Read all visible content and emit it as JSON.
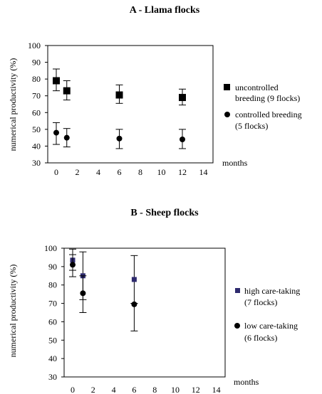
{
  "chart_data": [
    {
      "type": "scatter",
      "title": "A - Llama flocks",
      "xlabel": "months",
      "ylabel": "numerical productivity (%)",
      "xlim": [
        -1,
        14
      ],
      "ylim": [
        30,
        100
      ],
      "x_ticks": [
        "0",
        "2",
        "4",
        "6",
        "8",
        "10",
        "12",
        "14"
      ],
      "y_ticks": [
        "30",
        "40",
        "50",
        "60",
        "70",
        "80",
        "90",
        "100"
      ],
      "grid": false,
      "legend_position": "right",
      "series": [
        {
          "name_lines": [
            "uncontrolled",
            "breeding (9 flocks)"
          ],
          "marker": "square",
          "color": "#000000",
          "points": [
            {
              "x": 0,
              "y": 79,
              "low": 73,
              "high": 86
            },
            {
              "x": 1,
              "y": 73,
              "low": 67.5,
              "high": 79
            },
            {
              "x": 6,
              "y": 70.5,
              "low": 65.5,
              "high": 76.5
            },
            {
              "x": 12,
              "y": 69,
              "low": 64.5,
              "high": 74
            }
          ]
        },
        {
          "name_lines": [
            "controlled breeding",
            "(5 flocks)"
          ],
          "marker": "circle",
          "color": "#000000",
          "points": [
            {
              "x": 0,
              "y": 48,
              "low": 41,
              "high": 54
            },
            {
              "x": 1,
              "y": 45,
              "low": 39.5,
              "high": 50.5
            },
            {
              "x": 6,
              "y": 44.5,
              "low": 38.5,
              "high": 50
            },
            {
              "x": 12,
              "y": 44,
              "low": 38.5,
              "high": 50
            }
          ]
        }
      ]
    },
    {
      "type": "scatter",
      "title": "B - Sheep flocks",
      "xlabel": "months",
      "ylabel": "numerical productivity (%)",
      "xlim": [
        -1,
        14
      ],
      "ylim": [
        30,
        100
      ],
      "x_ticks": [
        "0",
        "2",
        "4",
        "6",
        "8",
        "10",
        "12",
        "14"
      ],
      "y_ticks": [
        "30",
        "40",
        "50",
        "60",
        "70",
        "80",
        "90",
        "100"
      ],
      "grid": false,
      "legend_position": "right",
      "series": [
        {
          "name_lines": [
            "high care-taking",
            "(7 flocks)"
          ],
          "marker": "square",
          "color": "#2e2a6e",
          "points": [
            {
              "x": 0,
              "y": 93.5,
              "low": 88,
              "high": 99.5
            },
            {
              "x": 1,
              "y": 85,
              "low": 72,
              "high": 98
            },
            {
              "x": 6,
              "y": 83,
              "low": 70,
              "high": 96
            }
          ]
        },
        {
          "name_lines": [
            "low care-taking",
            "(6 flocks)"
          ],
          "marker": "circle",
          "color": "#000000",
          "points": [
            {
              "x": 0,
              "y": 91,
              "low": 84.5,
              "high": 96.5
            },
            {
              "x": 1,
              "y": 75.5,
              "low": 65,
              "high": 85
            },
            {
              "x": 6,
              "y": 69.5,
              "low": 55,
              "high": 70
            }
          ]
        }
      ]
    }
  ]
}
